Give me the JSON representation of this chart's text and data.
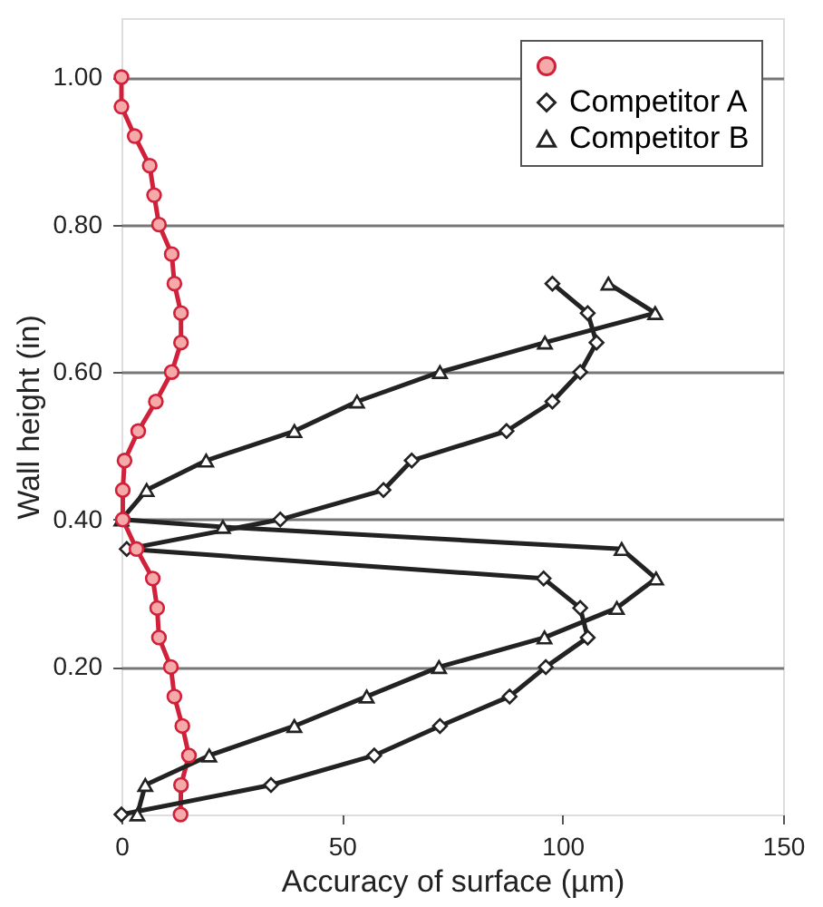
{
  "chart_data": {
    "type": "line",
    "xlabel": "Accuracy of surface (µm)",
    "ylabel": "Wall height (in)",
    "xlim": [
      0,
      150
    ],
    "xticks": [
      0,
      50,
      100,
      150
    ],
    "ylim": [
      0,
      1.08
    ],
    "yticks": [
      {
        "value": 0.2,
        "label": "0.20"
      },
      {
        "value": 0.4,
        "label": "0.40"
      },
      {
        "value": 0.6,
        "label": "0.60"
      },
      {
        "value": 0.8,
        "label": "0.80"
      },
      {
        "value": 1.0,
        "label": "1.00"
      }
    ],
    "grid": "y",
    "legend": "top right",
    "line_style": "solid",
    "series": [
      {
        "color": "#d0203a",
        "marker": "circle",
        "x": [
          0,
          0,
          3,
          6.4,
          7.4,
          8.5,
          11.4,
          12,
          13.5,
          13.5,
          11.4,
          7.8,
          3.8,
          0.7,
          0.3,
          0.3,
          3.4,
          7.1,
          8.1,
          8.5,
          11.2,
          12,
          13.8,
          15.3,
          13.5,
          13.4
        ],
        "values": [
          1.0,
          0.96,
          0.92,
          0.88,
          0.84,
          0.8,
          0.76,
          0.72,
          0.68,
          0.64,
          0.6,
          0.56,
          0.52,
          0.48,
          0.44,
          0.4,
          0.36,
          0.32,
          0.28,
          0.24,
          0.2,
          0.16,
          0.12,
          0.08,
          0.04,
          0.0
        ]
      },
      {
        "name": "Competitor A",
        "color": "#222222",
        "marker": "diamond",
        "x": [
          97.7,
          105.7,
          107.7,
          104,
          97.7,
          87.3,
          65.8,
          59.4,
          36,
          1.2,
          95.7,
          104,
          105.7,
          96.2,
          88,
          72.2,
          57.3,
          33.9,
          0
        ],
        "values": [
          0.72,
          0.68,
          0.64,
          0.6,
          0.56,
          0.52,
          0.48,
          0.44,
          0.4,
          0.36,
          0.32,
          0.28,
          0.24,
          0.2,
          0.16,
          0.12,
          0.08,
          0.04,
          0.0
        ]
      },
      {
        "name": "Competitor B",
        "color": "#222222",
        "marker": "triangle",
        "x": [
          110.4,
          121,
          96,
          72.2,
          53.4,
          39.2,
          19.2,
          5.7,
          0,
          23,
          113.4,
          121.2,
          112.3,
          95.9,
          72,
          55.6,
          39.2,
          19.9,
          5.4,
          3.6
        ],
        "values": [
          0.72,
          0.68,
          0.64,
          0.6,
          0.56,
          0.52,
          0.48,
          0.44,
          0.4,
          0.39,
          0.36,
          0.32,
          0.28,
          0.24,
          0.2,
          0.16,
          0.12,
          0.08,
          0.04,
          0.0
        ]
      }
    ]
  }
}
